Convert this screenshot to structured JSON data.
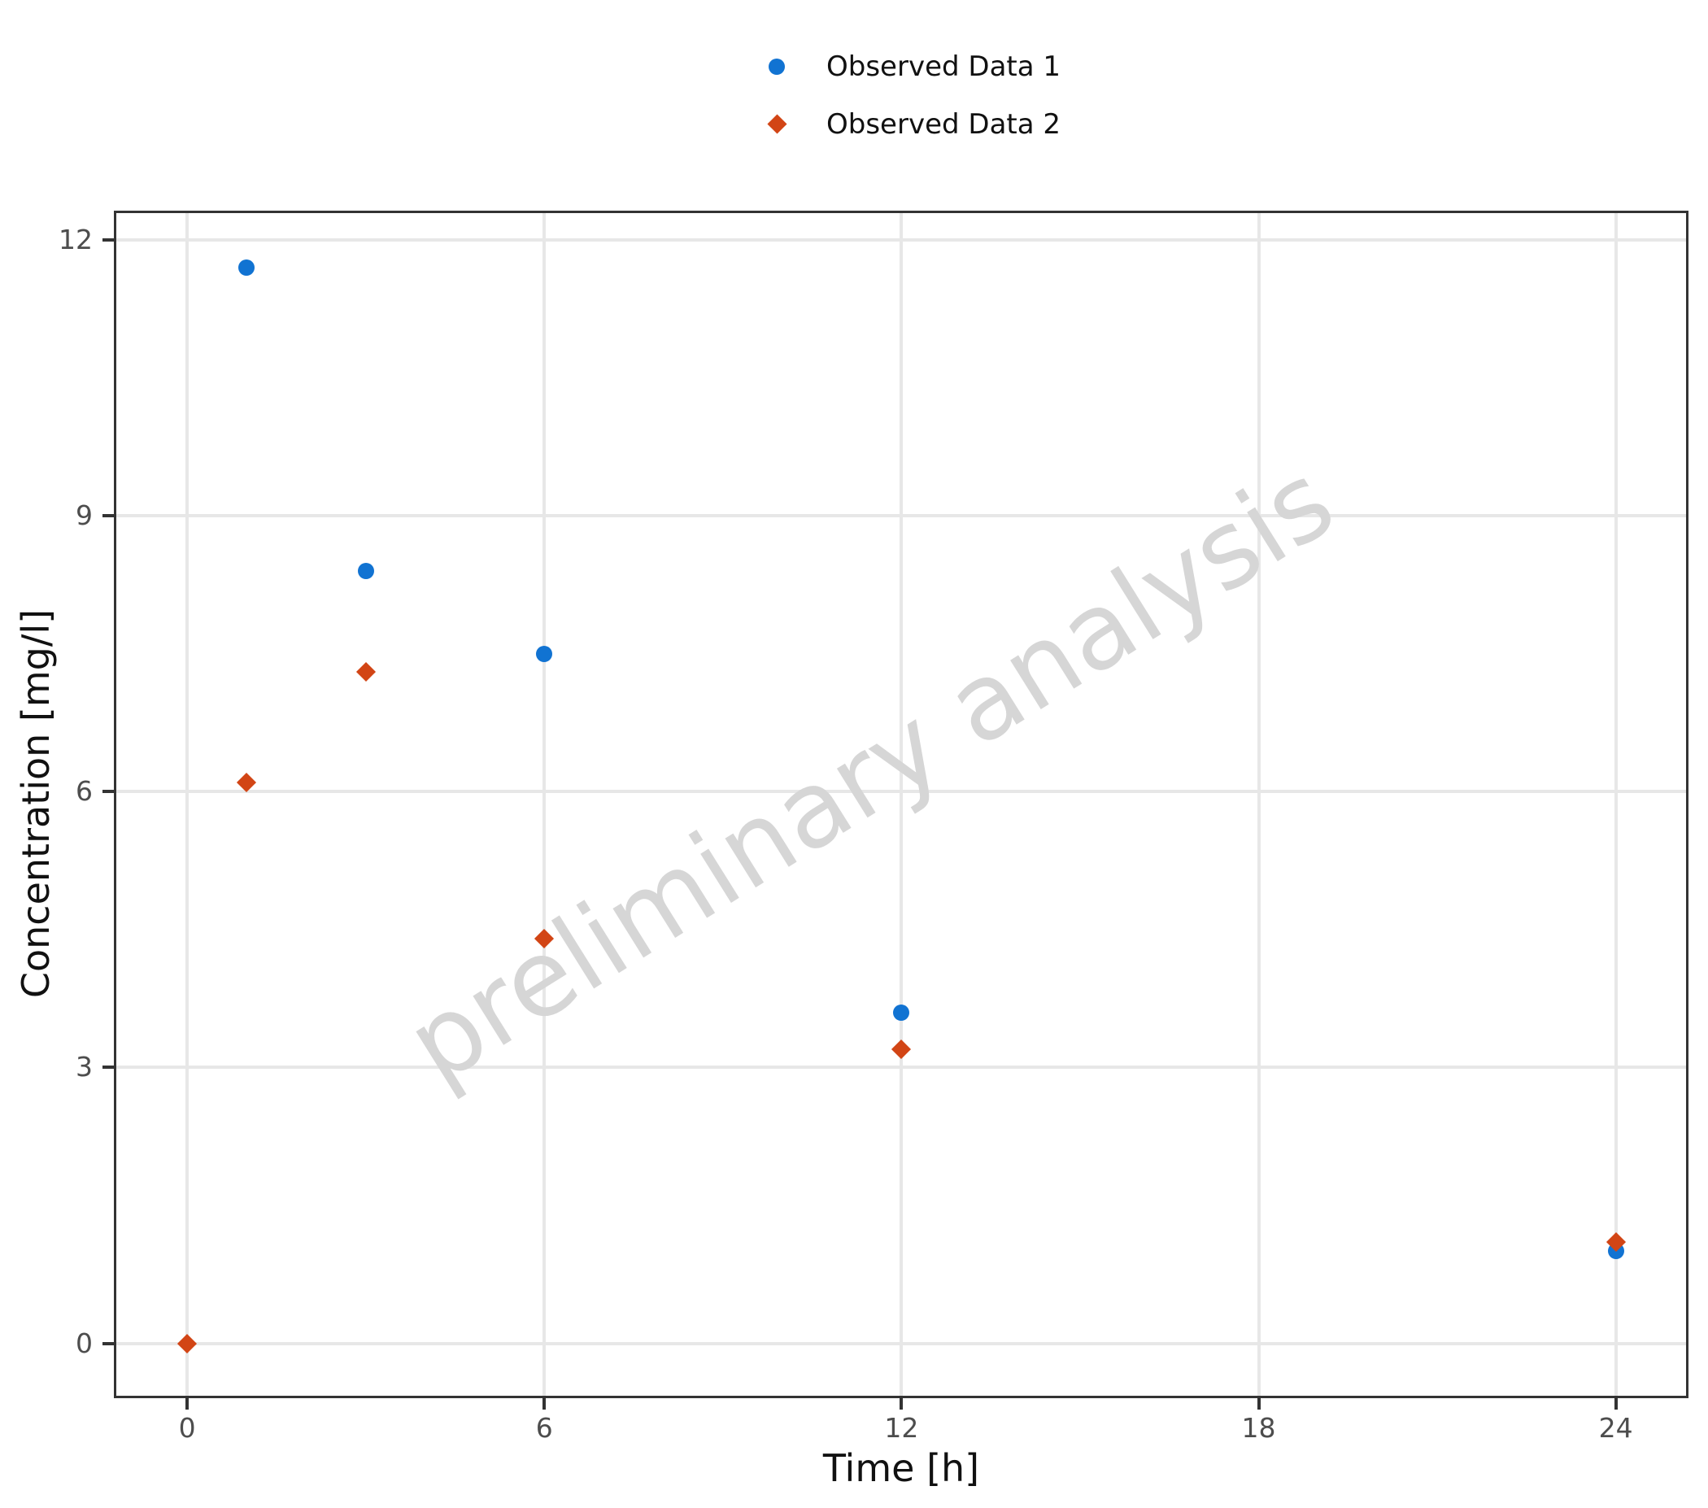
{
  "chart_data": {
    "type": "scatter",
    "title": "",
    "xlabel": "Time [h]",
    "ylabel": "Concentration [mg/l]",
    "watermark": "preliminary analysis",
    "x_ticks": [
      0,
      6,
      12,
      18,
      24
    ],
    "y_ticks": [
      0,
      3,
      6,
      9,
      12
    ],
    "xlim": [
      -1.19,
      25.18
    ],
    "ylim": [
      -0.57,
      12.29
    ],
    "grid": true,
    "legend_position": "top-center",
    "series": [
      {
        "name": "Observed Data 1",
        "marker": "circle",
        "color": "#1173d2",
        "x": [
          1,
          3,
          6,
          12,
          24
        ],
        "y": [
          11.7,
          8.4,
          7.5,
          3.6,
          1.0
        ]
      },
      {
        "name": "Observed Data 2",
        "marker": "diamond",
        "color": "#d24515",
        "x": [
          0,
          1,
          3,
          6,
          12,
          24
        ],
        "y": [
          0.0,
          6.1,
          7.3,
          4.4,
          3.2,
          1.1
        ]
      }
    ]
  },
  "colors": {
    "spine": "#333333",
    "grid": "#e7e7e7",
    "tick_label": "#4d4d4d",
    "axis_title": "#111111",
    "watermark": "#d6d6d6",
    "background": "#ffffff"
  }
}
